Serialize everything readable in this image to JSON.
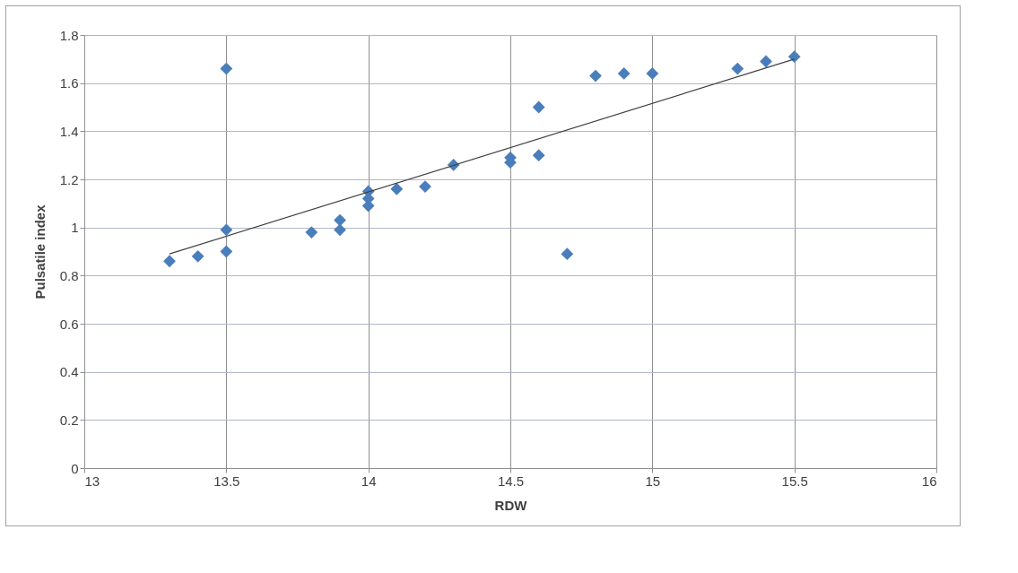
{
  "chart_data": {
    "type": "scatter",
    "xlabel": "RDW",
    "ylabel": "Pulsatile index",
    "xlim": [
      13,
      16
    ],
    "xticks": [
      13,
      13.5,
      14,
      14.5,
      15,
      15.5,
      16
    ],
    "ylim": [
      0,
      1.8
    ],
    "yticks": [
      0,
      0.2,
      0.4,
      0.6,
      0.8,
      1,
      1.2,
      1.4,
      1.6,
      1.8
    ],
    "grid": true,
    "marker": "diamond",
    "series": [
      {
        "color": "#4a7ebb",
        "x": [
          13.3,
          13.4,
          13.5,
          13.5,
          13.5,
          13.8,
          13.9,
          13.9,
          14.0,
          14.0,
          14.0,
          14.1,
          14.2,
          14.3,
          14.5,
          14.5,
          14.6,
          14.6,
          14.7,
          14.8,
          14.9,
          15.0,
          15.3,
          15.4,
          15.5
        ],
        "values": [
          0.86,
          0.88,
          1.66,
          0.99,
          0.9,
          0.98,
          1.03,
          0.99,
          1.15,
          1.12,
          1.09,
          1.16,
          1.17,
          1.26,
          1.29,
          1.27,
          1.5,
          1.3,
          0.89,
          1.63,
          1.64,
          1.64,
          1.66,
          1.69,
          1.71
        ]
      },
      {
        "type": "line",
        "color": "#404040",
        "line_style": "solid",
        "marker": "none",
        "x": [
          13.3,
          15.5
        ],
        "values": [
          0.89,
          1.7
        ]
      }
    ]
  }
}
